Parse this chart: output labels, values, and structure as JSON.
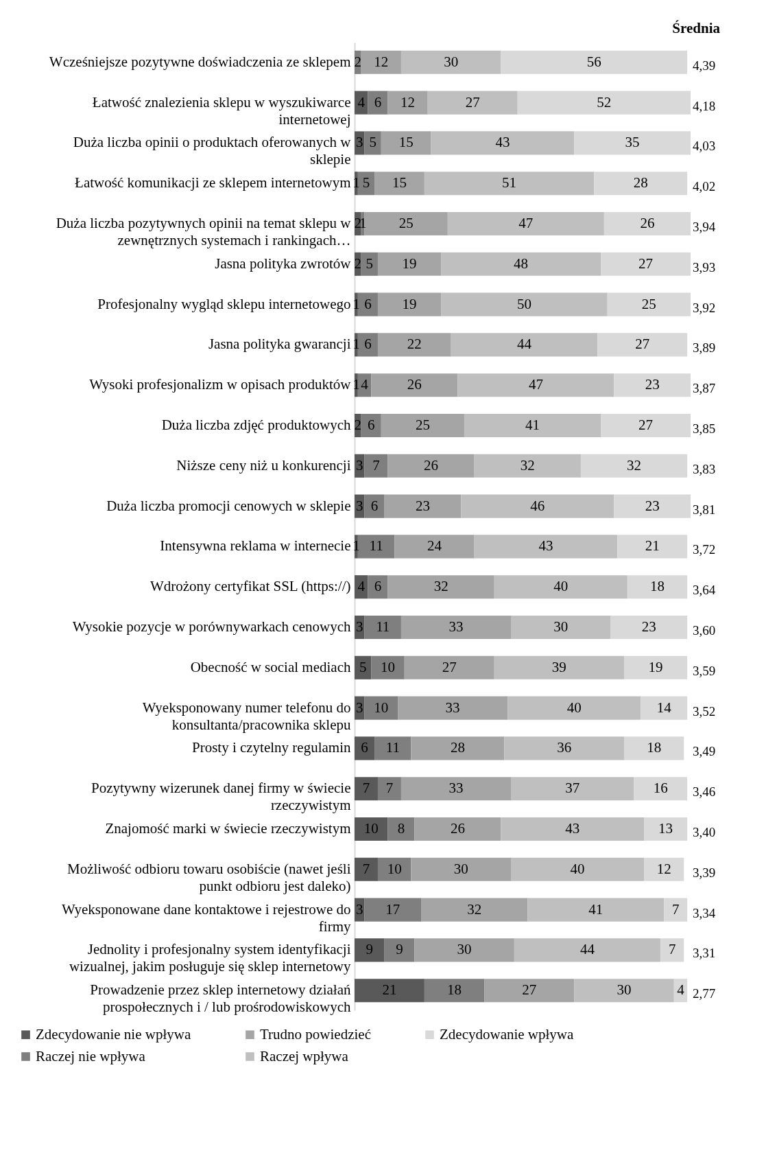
{
  "chart_data": {
    "type": "bar",
    "orientation": "horizontal",
    "stacked": true,
    "data_labels": true,
    "legend": "bottom",
    "categories": [
      "Wcześniejsze pozytywne doświadczenia ze sklepem",
      "Łatwość znalezienia sklepu w wyszukiwarce internetowej",
      "Duża liczba opinii o produktach oferowanych w sklepie",
      "Łatwość komunikacji ze sklepem internetowym",
      "Duża liczba pozytywnych opinii na temat sklepu w zewnętrznych systemach i rankingach…",
      "Jasna polityka zwrotów",
      "Profesjonalny wygląd sklepu internetowego",
      "Jasna polityka gwarancji",
      "Wysoki profesjonalizm w opisach produktów",
      "Duża liczba zdjęć produktowych",
      "Niższe ceny niż u konkurencji",
      "Duża liczba promocji cenowych w sklepie",
      "Intensywna reklama w internecie",
      "Wdrożony certyfikat SSL (https://)",
      "Wysokie pozycje w porównywarkach cenowych",
      "Obecność w social mediach",
      "Wyeksponowany numer telefonu do konsultanta/pracownika sklepu",
      "Prosty i czytelny regulamin",
      "Pozytywny wizerunek danej firmy w świecie rzeczywistym",
      "Znajomość marki w świecie rzeczywistym",
      "Możliwość odbioru towaru osobiście (nawet jeśli punkt odbioru jest daleko)",
      "Wyeksponowane dane kontaktowe i rejestrowe do firmy",
      "Jednolity i profesjonalny system identyfikacji wizualnej, jakim posługuje się sklep internetowy",
      "Prowadzenie przez sklep internetowy działań prospołecznych i / lub prośrodowiskowych"
    ],
    "series": [
      {
        "name": "Zdecydowanie nie wpływa",
        "color": "#595959",
        "values": [
          null,
          4,
          3,
          1,
          2,
          2,
          1,
          1,
          1,
          2,
          3,
          3,
          1,
          4,
          3,
          5,
          3,
          6,
          7,
          10,
          7,
          3,
          9,
          21
        ]
      },
      {
        "name": "Raczej nie wpływa",
        "color": "#7f7f7f",
        "values": [
          2,
          6,
          5,
          5,
          1,
          5,
          6,
          6,
          4,
          6,
          7,
          6,
          11,
          6,
          11,
          10,
          10,
          11,
          7,
          8,
          10,
          17,
          9,
          18
        ]
      },
      {
        "name": "Trudno powiedzieć",
        "color": "#a5a5a5",
        "values": [
          12,
          12,
          15,
          15,
          25,
          19,
          19,
          22,
          26,
          25,
          26,
          23,
          24,
          32,
          33,
          27,
          33,
          28,
          33,
          26,
          30,
          32,
          30,
          27
        ]
      },
      {
        "name": "Raczej wpływa",
        "color": "#bfbfbf",
        "values": [
          30,
          27,
          43,
          51,
          47,
          48,
          50,
          44,
          47,
          41,
          32,
          46,
          43,
          40,
          30,
          39,
          40,
          36,
          37,
          43,
          40,
          41,
          44,
          30
        ]
      },
      {
        "name": "Zdecydowanie wpływa",
        "color": "#d9d9d9",
        "values": [
          56,
          52,
          35,
          28,
          26,
          27,
          25,
          27,
          23,
          27,
          32,
          23,
          21,
          18,
          23,
          19,
          14,
          18,
          16,
          13,
          12,
          7,
          7,
          4
        ]
      }
    ],
    "annotations": [
      "Średnia",
      "4,39",
      "4,18",
      "4,03",
      "4,02",
      "3,94",
      "3,93",
      "3,92",
      "3,89",
      "3,87",
      "3,85",
      "3,83",
      "3,81",
      "3,72",
      "3,64",
      "3,60",
      "3,59",
      "3,52",
      "3,49",
      "3,46",
      "3,40",
      "3,39",
      "3,34",
      "3,31",
      "2,77"
    ]
  }
}
